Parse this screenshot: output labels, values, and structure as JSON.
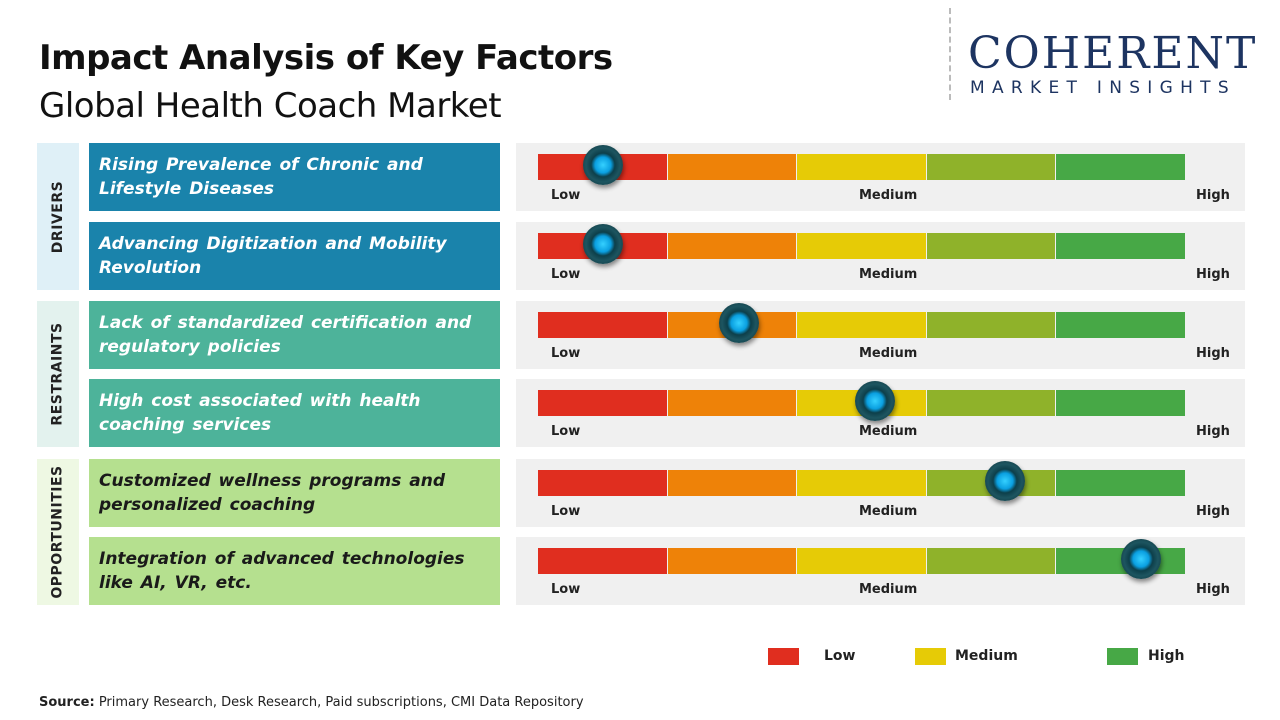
{
  "header": {
    "title": "Impact Analysis of Key Factors",
    "subtitle": "Global Health Coach Market"
  },
  "logo": {
    "main": "COHERENT",
    "sub": "MARKET INSIGHTS"
  },
  "colors": {
    "scale": [
      "#e02e1f",
      "#ee8208",
      "#e6cb06",
      "#8fb22a",
      "#47a846"
    ],
    "drivers": "#1a83ab",
    "drivers_bg": "#dff0f7",
    "restraints": "#4db39a",
    "restraints_bg": "#e3f2ee",
    "opportunities": "#b5e08f",
    "opportunities_bg": "#eef8e3",
    "knob": "#0a9fe0"
  },
  "chart_data": {
    "type": "gauge",
    "scale_labels": [
      "Low",
      "Medium",
      "High"
    ],
    "categories": [
      {
        "name": "DRIVERS",
        "factors": [
          {
            "label": "Rising Prevalence of Chronic and Lifestyle Diseases",
            "impact": 0.1
          },
          {
            "label": "Advancing Digitization and Mobility Revolution",
            "impact": 0.1
          }
        ]
      },
      {
        "name": "RESTRAINTS",
        "factors": [
          {
            "label": "Lack of standardized certification and regulatory policies",
            "impact": 0.31
          },
          {
            "label": "High cost associated with health coaching services",
            "impact": 0.52
          }
        ]
      },
      {
        "name": "OPPORTUNITIES",
        "factors": [
          {
            "label": "Customized wellness programs and personalized coaching",
            "impact": 0.72
          },
          {
            "label": "Integration of advanced technologies like AI, VR, etc.",
            "impact": 0.93
          }
        ]
      }
    ],
    "legend": [
      {
        "label": "Low",
        "color": "#e02e1f"
      },
      {
        "label": "Medium",
        "color": "#e6cb06"
      },
      {
        "label": "High",
        "color": "#47a846"
      }
    ]
  },
  "source": {
    "label": "Source:",
    "text": " Primary Research, Desk Research, Paid subscriptions, CMI Data Repository"
  }
}
